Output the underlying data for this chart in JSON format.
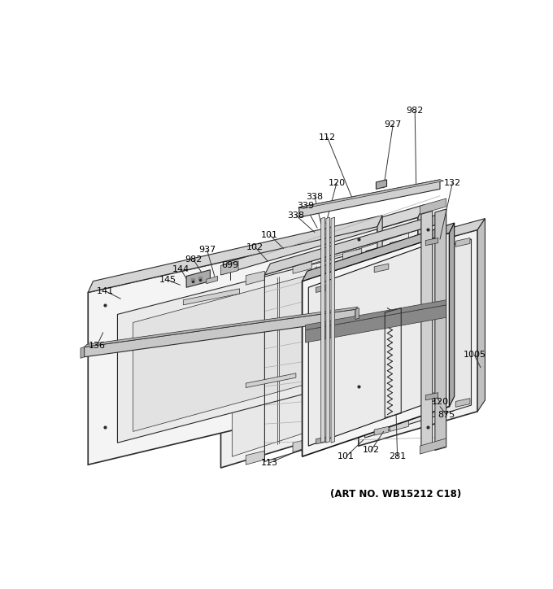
{
  "bg_color": "#ffffff",
  "lc": "#2a2a2a",
  "lc_thin": "#555555",
  "fc_light": "#f0f0f0",
  "fc_mid": "#e0e0e0",
  "fc_dark": "#cccccc",
  "fc_side": "#d8d8d8",
  "art_no_text": "(ART NO. WB15212 C18)",
  "art_no_fontsize": 8.5,
  "label_fontsize": 8.0,
  "fig_width": 6.8,
  "fig_height": 7.24,
  "dpi": 100
}
